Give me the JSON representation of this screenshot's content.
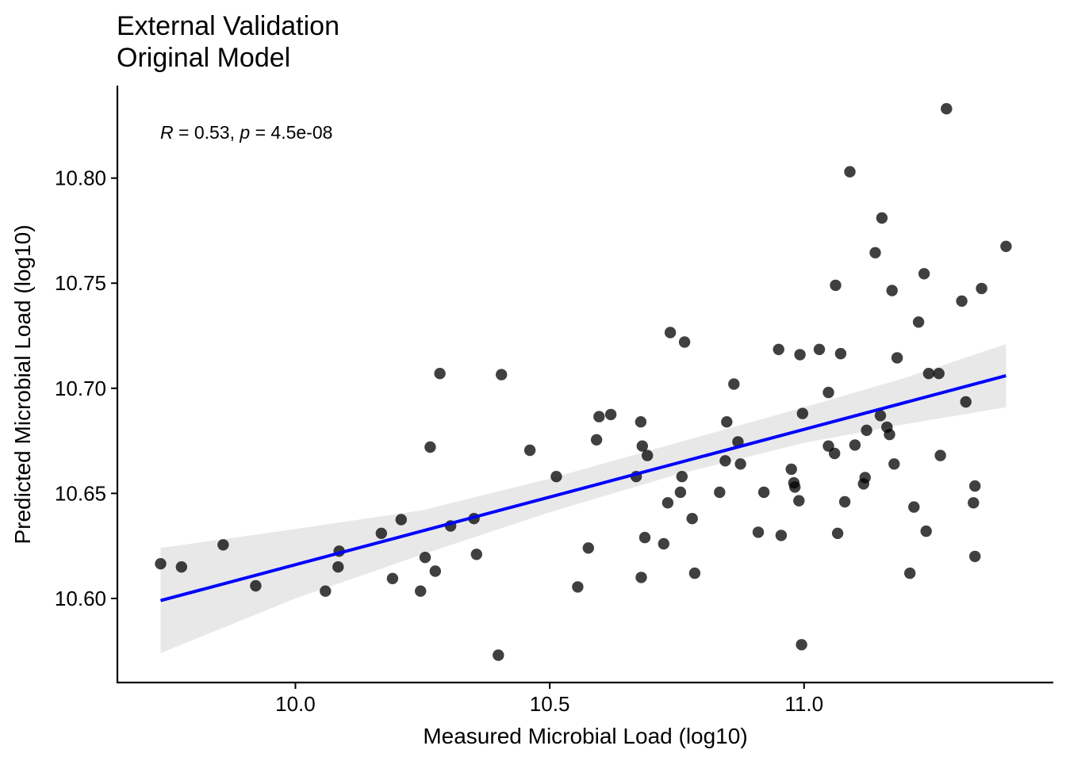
{
  "chart_data": {
    "type": "scatter",
    "title": "External Validation",
    "subtitle": "Original Model",
    "xlabel": "Measured Microbial Load (log10)",
    "ylabel": "Predicted Microbial Load (log10)",
    "xlim": [
      9.65,
      11.49
    ],
    "ylim": [
      10.56,
      10.844
    ],
    "x_ticks": [
      10.0,
      10.5,
      11.0
    ],
    "x_tick_labels": [
      "10.0",
      "10.5",
      "11.0"
    ],
    "y_ticks": [
      10.6,
      10.65,
      10.7,
      10.75,
      10.8
    ],
    "y_tick_labels": [
      "10.60",
      "10.65",
      "10.70",
      "10.75",
      "10.80"
    ],
    "grid": false,
    "annotation": {
      "r_symbol": "R",
      "r_text": " = 0.53, ",
      "p_symbol": "p",
      "p_text": " = 4.5e-08"
    },
    "point_color": "#000000",
    "point_opacity": 0.75,
    "fit_line": {
      "color": "#0000ff",
      "x": [
        9.735,
        11.397
      ],
      "y": [
        10.599,
        10.706
      ]
    },
    "confidence_band": {
      "color": "#e8e8e8",
      "x": [
        9.735,
        10.0,
        10.25,
        10.5,
        10.75,
        11.0,
        11.2,
        11.397
      ],
      "lower": [
        10.574,
        10.6,
        10.621,
        10.641,
        10.659,
        10.674,
        10.683,
        10.691
      ],
      "upper": [
        10.624,
        10.633,
        10.642,
        10.657,
        10.674,
        10.691,
        10.705,
        10.721
      ]
    },
    "points": [
      {
        "x": 9.735,
        "y": 10.6165
      },
      {
        "x": 9.776,
        "y": 10.615
      },
      {
        "x": 9.858,
        "y": 10.6255
      },
      {
        "x": 9.922,
        "y": 10.606
      },
      {
        "x": 10.059,
        "y": 10.6035
      },
      {
        "x": 10.084,
        "y": 10.615
      },
      {
        "x": 10.086,
        "y": 10.6225
      },
      {
        "x": 10.169,
        "y": 10.631
      },
      {
        "x": 10.191,
        "y": 10.6095
      },
      {
        "x": 10.208,
        "y": 10.6375
      },
      {
        "x": 10.246,
        "y": 10.6035
      },
      {
        "x": 10.255,
        "y": 10.6195
      },
      {
        "x": 10.265,
        "y": 10.672
      },
      {
        "x": 10.275,
        "y": 10.613
      },
      {
        "x": 10.284,
        "y": 10.707
      },
      {
        "x": 10.305,
        "y": 10.6345
      },
      {
        "x": 10.351,
        "y": 10.638
      },
      {
        "x": 10.356,
        "y": 10.621
      },
      {
        "x": 10.399,
        "y": 10.573
      },
      {
        "x": 10.405,
        "y": 10.7065
      },
      {
        "x": 10.461,
        "y": 10.6705
      },
      {
        "x": 10.513,
        "y": 10.658
      },
      {
        "x": 10.555,
        "y": 10.6055
      },
      {
        "x": 10.576,
        "y": 10.624
      },
      {
        "x": 10.592,
        "y": 10.6755
      },
      {
        "x": 10.597,
        "y": 10.6865
      },
      {
        "x": 10.62,
        "y": 10.6875
      },
      {
        "x": 10.67,
        "y": 10.658
      },
      {
        "x": 10.679,
        "y": 10.684
      },
      {
        "x": 10.68,
        "y": 10.61
      },
      {
        "x": 10.682,
        "y": 10.6725
      },
      {
        "x": 10.687,
        "y": 10.629
      },
      {
        "x": 10.692,
        "y": 10.668
      },
      {
        "x": 10.724,
        "y": 10.626
      },
      {
        "x": 10.732,
        "y": 10.6455
      },
      {
        "x": 10.737,
        "y": 10.7265
      },
      {
        "x": 10.757,
        "y": 10.6505
      },
      {
        "x": 10.76,
        "y": 10.658
      },
      {
        "x": 10.765,
        "y": 10.722
      },
      {
        "x": 10.78,
        "y": 10.638
      },
      {
        "x": 10.785,
        "y": 10.612
      },
      {
        "x": 10.834,
        "y": 10.6505
      },
      {
        "x": 10.845,
        "y": 10.6655
      },
      {
        "x": 10.848,
        "y": 10.684
      },
      {
        "x": 10.862,
        "y": 10.702
      },
      {
        "x": 10.87,
        "y": 10.6745
      },
      {
        "x": 10.875,
        "y": 10.664
      },
      {
        "x": 10.91,
        "y": 10.6315
      },
      {
        "x": 10.921,
        "y": 10.6505
      },
      {
        "x": 10.95,
        "y": 10.7185
      },
      {
        "x": 10.955,
        "y": 10.63
      },
      {
        "x": 10.975,
        "y": 10.6615
      },
      {
        "x": 10.98,
        "y": 10.655
      },
      {
        "x": 10.982,
        "y": 10.653
      },
      {
        "x": 10.99,
        "y": 10.6465
      },
      {
        "x": 10.992,
        "y": 10.716
      },
      {
        "x": 10.995,
        "y": 10.578
      },
      {
        "x": 10.997,
        "y": 10.688
      },
      {
        "x": 11.03,
        "y": 10.7185
      },
      {
        "x": 11.048,
        "y": 10.698
      },
      {
        "x": 11.048,
        "y": 10.6725
      },
      {
        "x": 11.06,
        "y": 10.669
      },
      {
        "x": 11.062,
        "y": 10.749
      },
      {
        "x": 11.066,
        "y": 10.631
      },
      {
        "x": 11.072,
        "y": 10.7165
      },
      {
        "x": 11.08,
        "y": 10.646
      },
      {
        "x": 11.09,
        "y": 10.803
      },
      {
        "x": 11.1,
        "y": 10.673
      },
      {
        "x": 11.117,
        "y": 10.6545
      },
      {
        "x": 11.12,
        "y": 10.6575
      },
      {
        "x": 11.123,
        "y": 10.68
      },
      {
        "x": 11.14,
        "y": 10.7645
      },
      {
        "x": 11.15,
        "y": 10.687
      },
      {
        "x": 11.153,
        "y": 10.781
      },
      {
        "x": 11.163,
        "y": 10.6815
      },
      {
        "x": 11.168,
        "y": 10.678
      },
      {
        "x": 11.173,
        "y": 10.7465
      },
      {
        "x": 11.177,
        "y": 10.664
      },
      {
        "x": 11.183,
        "y": 10.7145
      },
      {
        "x": 11.208,
        "y": 10.612
      },
      {
        "x": 11.216,
        "y": 10.6435
      },
      {
        "x": 11.225,
        "y": 10.7315
      },
      {
        "x": 11.236,
        "y": 10.7545
      },
      {
        "x": 11.24,
        "y": 10.632
      },
      {
        "x": 11.245,
        "y": 10.707
      },
      {
        "x": 11.265,
        "y": 10.707
      },
      {
        "x": 11.268,
        "y": 10.668
      },
      {
        "x": 11.28,
        "y": 10.833
      },
      {
        "x": 11.31,
        "y": 10.7415
      },
      {
        "x": 11.318,
        "y": 10.6935
      },
      {
        "x": 11.333,
        "y": 10.6455
      },
      {
        "x": 11.336,
        "y": 10.62
      },
      {
        "x": 11.336,
        "y": 10.6535
      },
      {
        "x": 11.349,
        "y": 10.7475
      },
      {
        "x": 11.397,
        "y": 10.7675
      }
    ]
  }
}
